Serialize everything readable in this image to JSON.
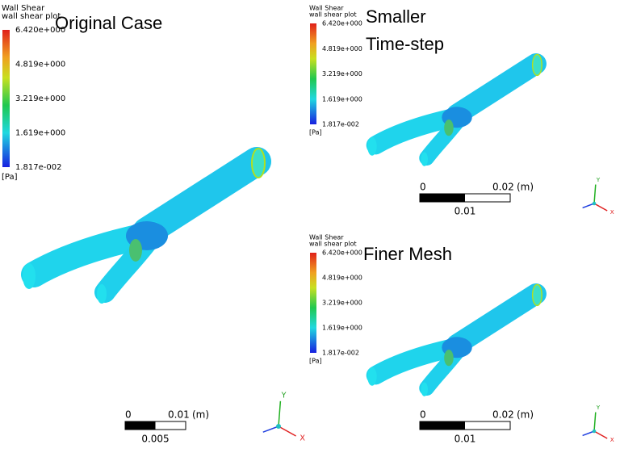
{
  "panels": [
    {
      "title_lines": [
        "Original Case"
      ],
      "legend": {
        "title": "Wall Shear",
        "subtitle": "wall shear plot",
        "labels": [
          "6.420e+000",
          "4.819e+000",
          "3.219e+000",
          "1.619e+000",
          "1.817e-002"
        ],
        "unit": "[Pa]"
      },
      "scale": {
        "labels": [
          "0",
          "0.01",
          "(m)"
        ],
        "sublabel": "0.005"
      },
      "axes": [
        "Y",
        "X"
      ]
    },
    {
      "title_lines": [
        "Smaller",
        "Time-step"
      ],
      "legend": {
        "title": "Wall Shear",
        "subtitle": "wall shear plot",
        "labels": [
          "6.420e+000",
          "4.819e+000",
          "3.219e+000",
          "1.619e+000",
          "1.817e-002"
        ],
        "unit": "[Pa]"
      },
      "scale": {
        "labels": [
          "0",
          "0.02",
          "(m)"
        ],
        "sublabel": "0.01"
      },
      "axes": [
        "Y",
        "X"
      ]
    },
    {
      "title_lines": [
        "Finer Mesh"
      ],
      "legend": {
        "title": "Wall Shear",
        "subtitle": "wall shear plot",
        "labels": [
          "6.420e+000",
          "4.819e+000",
          "3.219e+000",
          "1.619e+000",
          "1.817e-002"
        ],
        "unit": "[Pa]"
      },
      "scale": {
        "labels": [
          "0",
          "0.02",
          "(m)"
        ],
        "sublabel": "0.01"
      },
      "axes": [
        "Y",
        "X"
      ]
    }
  ]
}
